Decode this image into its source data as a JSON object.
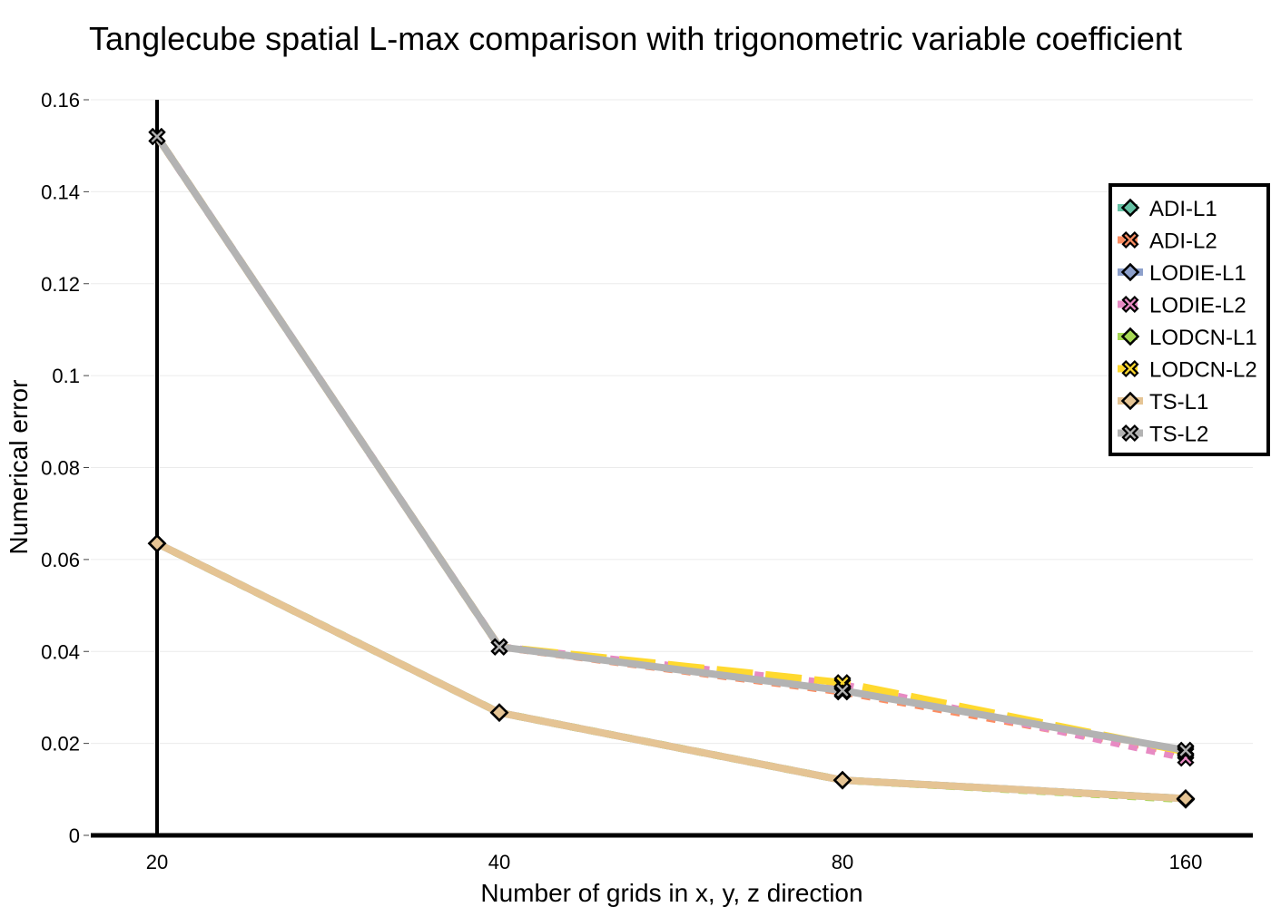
{
  "chart_data": {
    "type": "line",
    "title": "Tanglecube spatial L-max comparison with trigonometric variable coefficient",
    "xlabel": "Number of grids in x, y, z direction",
    "ylabel": "Numerical error",
    "x_scale": "log2",
    "x": [
      20,
      40,
      80,
      160
    ],
    "x_ticks": [
      "20",
      "40",
      "80",
      "160"
    ],
    "y_ticks": [
      "0",
      "0.02",
      "0.04",
      "0.06",
      "0.08",
      "0.1",
      "0.12",
      "0.14",
      "0.16"
    ],
    "ylim": [
      0,
      0.16
    ],
    "grid": "horizontal",
    "legend_position": "right",
    "series": [
      {
        "name": "ADI-L1",
        "values": [
          0.0635,
          0.0267,
          0.012,
          0.008
        ],
        "color": "#66c2a5",
        "dash": "10,10",
        "marker": "diamond"
      },
      {
        "name": "ADI-L2",
        "values": [
          0.152,
          0.041,
          0.0312,
          0.0178
        ],
        "color": "#fc8d62",
        "dash": "10,10",
        "marker": "x"
      },
      {
        "name": "LODIE-L1",
        "values": [
          0.0635,
          0.0267,
          0.012,
          0.008
        ],
        "color": "#8da0cb",
        "dash": "",
        "marker": "diamond"
      },
      {
        "name": "LODIE-L2",
        "values": [
          0.152,
          0.041,
          0.0328,
          0.0168
        ],
        "color": "#e78ac3",
        "dash": "10,10",
        "marker": "x"
      },
      {
        "name": "LODCN-L1",
        "values": [
          0.0635,
          0.0267,
          0.012,
          0.0078
        ],
        "color": "#a6d854",
        "dash": "10,10",
        "marker": "diamond"
      },
      {
        "name": "LODCN-L2",
        "values": [
          0.152,
          0.041,
          0.0332,
          0.0182
        ],
        "color": "#ffd92f",
        "dash": "40,14",
        "marker": "x"
      },
      {
        "name": "TS-L1",
        "values": [
          0.0635,
          0.0267,
          0.012,
          0.008
        ],
        "color": "#e5c494",
        "dash": "",
        "marker": "diamond"
      },
      {
        "name": "TS-L2",
        "values": [
          0.152,
          0.041,
          0.0315,
          0.0185
        ],
        "color": "#b3b3b3",
        "dash": "",
        "marker": "x"
      }
    ]
  }
}
